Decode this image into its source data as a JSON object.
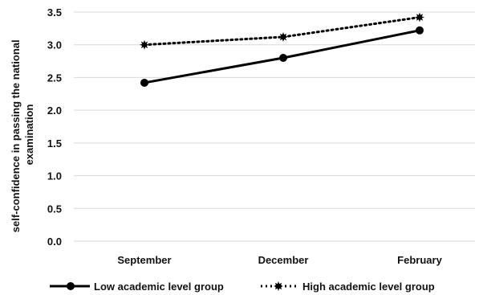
{
  "chart_data": {
    "type": "line",
    "title": "",
    "xlabel": "",
    "ylabel": "self-confidence in passing the national examination",
    "ylabel_lines": [
      "self-confidence in passing the national",
      "examination"
    ],
    "categories": [
      "September",
      "December",
      "February"
    ],
    "ylim": [
      0,
      3.5
    ],
    "yticks": [
      "0.0",
      "0.5",
      "1.0",
      "1.5",
      "2.0",
      "2.5",
      "3.0",
      "3.5"
    ],
    "grid": "horizontal",
    "legend_position": "bottom",
    "series": [
      {
        "name": "Low academic level group",
        "values": [
          2.42,
          2.8,
          3.22
        ],
        "style": "solid",
        "marker": "circle",
        "color": "#000000"
      },
      {
        "name": "High academic level group",
        "values": [
          3.0,
          3.12,
          3.42
        ],
        "style": "dotted",
        "marker": "star",
        "color": "#000000"
      }
    ]
  }
}
